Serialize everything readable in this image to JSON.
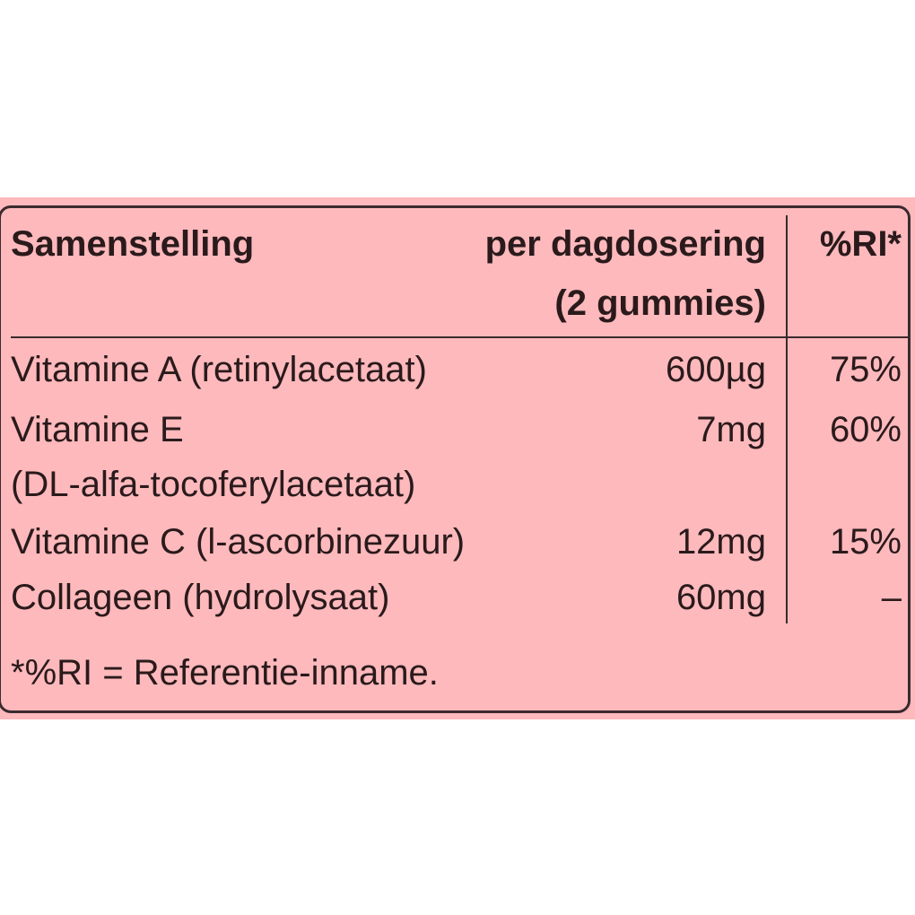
{
  "colors": {
    "background": "#fdb9bc",
    "text": "#2a1a1c",
    "border": "#3a2a2e"
  },
  "header": {
    "col1": "Samenstelling",
    "col2_line1": "per dagdosering",
    "col2_line2": "(2 gummies)",
    "col3": "%RI*"
  },
  "rows": [
    {
      "name": "Vitamine A (retinylacetaat)",
      "amount": "600µg",
      "ri": "75%"
    },
    {
      "name": "Vitamine E",
      "name_line2": "(DL-alfa-tocoferylacetaat)",
      "amount": "7mg",
      "ri": "60%"
    },
    {
      "name": "Vitamine C (l-ascorbinezuur)",
      "amount": "12mg",
      "ri": "15%"
    },
    {
      "name": "Collageen (hydrolysaat)",
      "amount": "60mg",
      "ri": "–"
    }
  ],
  "footnote": "*%RI = Referentie-inname."
}
